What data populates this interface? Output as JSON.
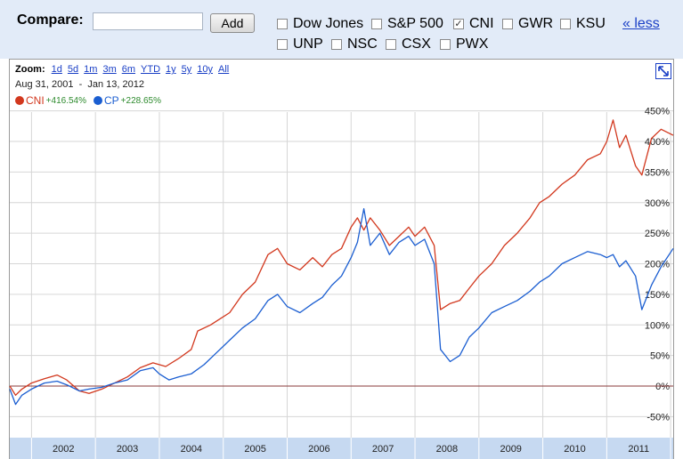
{
  "compare": {
    "label": "Compare:",
    "input_value": "",
    "input_placeholder": "",
    "add_label": "Add",
    "less_label": "« less",
    "tickers_row1": [
      {
        "label": "Dow Jones",
        "checked": false
      },
      {
        "label": "S&P 500",
        "checked": false
      },
      {
        "label": "CNI",
        "checked": true
      },
      {
        "label": "GWR",
        "checked": false
      },
      {
        "label": "KSU",
        "checked": false
      }
    ],
    "tickers_row2": [
      {
        "label": "UNP",
        "checked": false
      },
      {
        "label": "NSC",
        "checked": false
      },
      {
        "label": "CSX",
        "checked": false
      },
      {
        "label": "PWX",
        "checked": false
      }
    ]
  },
  "zoom": {
    "label": "Zoom:",
    "options": [
      "1d",
      "5d",
      "1m",
      "3m",
      "6m",
      "YTD",
      "1y",
      "5y",
      "10y",
      "All"
    ]
  },
  "date_range": {
    "start": "Aug 31, 2001",
    "separator": "-",
    "end": "Jan 13, 2012"
  },
  "icons": {
    "expand": "expand-icon",
    "checkbox": "checkbox-icon"
  },
  "colors": {
    "cni": "#d2381e",
    "cp": "#1b5ed1",
    "toolbar": "#e2ebf8",
    "axis_band": "#c6d9f1"
  },
  "chart_data": {
    "type": "line",
    "x_unit": "year",
    "ylim": [
      -70,
      450
    ],
    "yticks": [
      -50,
      0,
      50,
      100,
      150,
      200,
      250,
      300,
      350,
      400,
      450
    ],
    "ytick_labels": [
      "-50%",
      "0%",
      "50%",
      "100%",
      "150%",
      "200%",
      "250%",
      "300%",
      "350%",
      "400%",
      "450%"
    ],
    "xlim": [
      2001.66,
      2012.04
    ],
    "xtick_labels": [
      "2002",
      "2003",
      "2004",
      "2005",
      "2006",
      "2007",
      "2008",
      "2009",
      "2010",
      "2011"
    ],
    "grid": true,
    "legend_position": "top-left",
    "series": [
      {
        "name": "CNI",
        "change_label": "+416.54%",
        "color": "#d2381e",
        "points": [
          [
            2001.66,
            0
          ],
          [
            2001.75,
            -15
          ],
          [
            2001.85,
            -5
          ],
          [
            2002.0,
            5
          ],
          [
            2002.2,
            12
          ],
          [
            2002.4,
            18
          ],
          [
            2002.55,
            10
          ],
          [
            2002.75,
            -8
          ],
          [
            2002.9,
            -12
          ],
          [
            2003.1,
            -5
          ],
          [
            2003.3,
            5
          ],
          [
            2003.5,
            15
          ],
          [
            2003.7,
            30
          ],
          [
            2003.9,
            38
          ],
          [
            2004.1,
            32
          ],
          [
            2004.3,
            45
          ],
          [
            2004.5,
            60
          ],
          [
            2004.6,
            90
          ],
          [
            2004.8,
            100
          ],
          [
            2004.95,
            110
          ],
          [
            2005.1,
            120
          ],
          [
            2005.3,
            150
          ],
          [
            2005.5,
            170
          ],
          [
            2005.7,
            215
          ],
          [
            2005.85,
            225
          ],
          [
            2006.0,
            200
          ],
          [
            2006.2,
            190
          ],
          [
            2006.4,
            210
          ],
          [
            2006.55,
            195
          ],
          [
            2006.7,
            215
          ],
          [
            2006.85,
            225
          ],
          [
            2007.0,
            260
          ],
          [
            2007.1,
            275
          ],
          [
            2007.2,
            255
          ],
          [
            2007.3,
            275
          ],
          [
            2007.45,
            255
          ],
          [
            2007.6,
            230
          ],
          [
            2007.75,
            245
          ],
          [
            2007.9,
            260
          ],
          [
            2008.0,
            245
          ],
          [
            2008.15,
            260
          ],
          [
            2008.3,
            230
          ],
          [
            2008.4,
            125
          ],
          [
            2008.55,
            135
          ],
          [
            2008.7,
            140
          ],
          [
            2008.85,
            160
          ],
          [
            2009.0,
            180
          ],
          [
            2009.2,
            200
          ],
          [
            2009.4,
            230
          ],
          [
            2009.6,
            250
          ],
          [
            2009.8,
            275
          ],
          [
            2009.95,
            300
          ],
          [
            2010.1,
            310
          ],
          [
            2010.3,
            330
          ],
          [
            2010.5,
            345
          ],
          [
            2010.7,
            370
          ],
          [
            2010.9,
            380
          ],
          [
            2011.0,
            400
          ],
          [
            2011.1,
            435
          ],
          [
            2011.2,
            390
          ],
          [
            2011.3,
            410
          ],
          [
            2011.45,
            360
          ],
          [
            2011.55,
            345
          ],
          [
            2011.7,
            405
          ],
          [
            2011.85,
            420
          ],
          [
            2012.04,
            410
          ]
        ]
      },
      {
        "name": "CP",
        "change_label": "+228.65%",
        "color": "#1b5ed1",
        "points": [
          [
            2001.66,
            -5
          ],
          [
            2001.75,
            -30
          ],
          [
            2001.85,
            -15
          ],
          [
            2002.0,
            -5
          ],
          [
            2002.2,
            5
          ],
          [
            2002.4,
            8
          ],
          [
            2002.55,
            2
          ],
          [
            2002.75,
            -8
          ],
          [
            2002.9,
            -5
          ],
          [
            2003.1,
            -2
          ],
          [
            2003.3,
            5
          ],
          [
            2003.5,
            10
          ],
          [
            2003.7,
            25
          ],
          [
            2003.9,
            30
          ],
          [
            2004.0,
            20
          ],
          [
            2004.15,
            10
          ],
          [
            2004.3,
            15
          ],
          [
            2004.5,
            20
          ],
          [
            2004.7,
            35
          ],
          [
            2004.9,
            55
          ],
          [
            2005.1,
            75
          ],
          [
            2005.3,
            95
          ],
          [
            2005.5,
            110
          ],
          [
            2005.7,
            140
          ],
          [
            2005.85,
            150
          ],
          [
            2006.0,
            130
          ],
          [
            2006.2,
            120
          ],
          [
            2006.4,
            135
          ],
          [
            2006.55,
            145
          ],
          [
            2006.7,
            165
          ],
          [
            2006.85,
            180
          ],
          [
            2007.0,
            210
          ],
          [
            2007.1,
            235
          ],
          [
            2007.2,
            290
          ],
          [
            2007.3,
            230
          ],
          [
            2007.45,
            250
          ],
          [
            2007.6,
            215
          ],
          [
            2007.75,
            235
          ],
          [
            2007.9,
            245
          ],
          [
            2008.0,
            230
          ],
          [
            2008.15,
            240
          ],
          [
            2008.3,
            200
          ],
          [
            2008.4,
            60
          ],
          [
            2008.55,
            40
          ],
          [
            2008.7,
            50
          ],
          [
            2008.85,
            80
          ],
          [
            2009.0,
            95
          ],
          [
            2009.2,
            120
          ],
          [
            2009.4,
            130
          ],
          [
            2009.6,
            140
          ],
          [
            2009.8,
            155
          ],
          [
            2009.95,
            170
          ],
          [
            2010.1,
            180
          ],
          [
            2010.3,
            200
          ],
          [
            2010.5,
            210
          ],
          [
            2010.7,
            220
          ],
          [
            2010.9,
            215
          ],
          [
            2011.0,
            210
          ],
          [
            2011.1,
            215
          ],
          [
            2011.2,
            195
          ],
          [
            2011.3,
            205
          ],
          [
            2011.45,
            180
          ],
          [
            2011.55,
            125
          ],
          [
            2011.7,
            165
          ],
          [
            2011.85,
            195
          ],
          [
            2012.04,
            225
          ]
        ]
      }
    ]
  }
}
